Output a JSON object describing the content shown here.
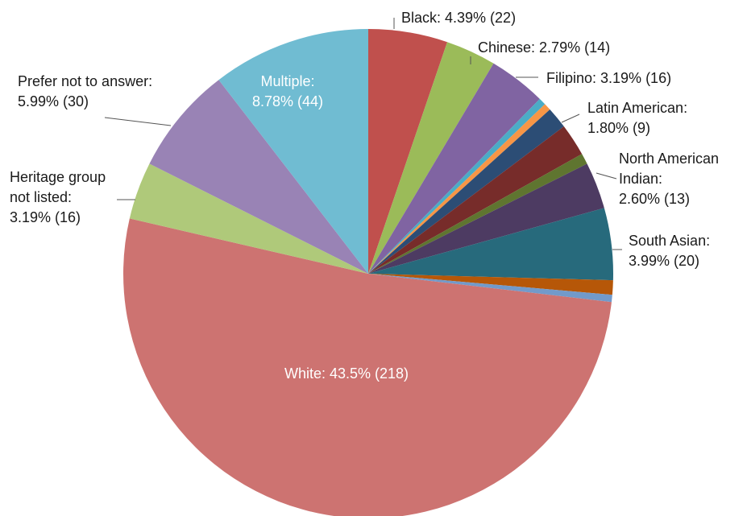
{
  "chart_data": {
    "type": "pie",
    "slices": [
      {
        "name": "Black",
        "percent": 4.39,
        "count": 22,
        "color": "#c0504d",
        "label_lines": [
          "Black: 4.39% (22)"
        ]
      },
      {
        "name": "Chinese",
        "percent": 2.79,
        "count": 14,
        "color": "#9bbb59",
        "label_lines": [
          "Chinese: 2.79% (14)"
        ]
      },
      {
        "name": "Filipino",
        "percent": 3.19,
        "count": 16,
        "color": "#8064a2",
        "label_lines": [
          "Filipino: 3.19% (16)"
        ]
      },
      {
        "name": "",
        "percent": 0.4,
        "color": "#4bacc6",
        "label_lines": []
      },
      {
        "name": "",
        "percent": 0.4,
        "color": "#f79646",
        "label_lines": []
      },
      {
        "name": "",
        "percent": 1.2,
        "color": "#2c4d75",
        "label_lines": []
      },
      {
        "name": "Latin American",
        "percent": 1.8,
        "count": 9,
        "color": "#772c2a",
        "label_lines": [
          "Latin American:",
          "1.80% (9)"
        ]
      },
      {
        "name": "",
        "percent": 0.6,
        "color": "#5f7530",
        "label_lines": []
      },
      {
        "name": "North American Indian",
        "percent": 2.6,
        "count": 13,
        "color": "#4d3b62",
        "label_lines": [
          "North American",
          "Indian:",
          "2.60% (13)"
        ]
      },
      {
        "name": "South Asian",
        "percent": 3.99,
        "count": 20,
        "color": "#276a7c",
        "label_lines": [
          "South Asian:",
          "3.99% (20)"
        ]
      },
      {
        "name": "",
        "percent": 0.8,
        "color": "#b65708",
        "label_lines": []
      },
      {
        "name": "",
        "percent": 0.4,
        "color": "#729aca",
        "label_lines": []
      },
      {
        "name": "White",
        "percent": 43.5,
        "count": 218,
        "color": "#cd7371",
        "label_lines": [
          "White: 43.5% (218)"
        ]
      },
      {
        "name": "Heritage group not listed",
        "percent": 3.19,
        "count": 16,
        "color": "#afc97a",
        "label_lines": [
          "Heritage group",
          "not listed:",
          "3.19% (16)"
        ]
      },
      {
        "name": "Prefer not to answer",
        "percent": 5.99,
        "count": 30,
        "color": "#9983b5",
        "label_lines": [
          "Prefer not to answer:",
          "5.99% (30)"
        ]
      },
      {
        "name": "Multiple",
        "percent": 8.78,
        "count": 44,
        "color": "#70bcd2",
        "label_lines": [
          "Multiple:",
          "8.78% (44)"
        ]
      }
    ],
    "start": "12 o'clock",
    "direction": "clockwise",
    "legend": "none"
  }
}
